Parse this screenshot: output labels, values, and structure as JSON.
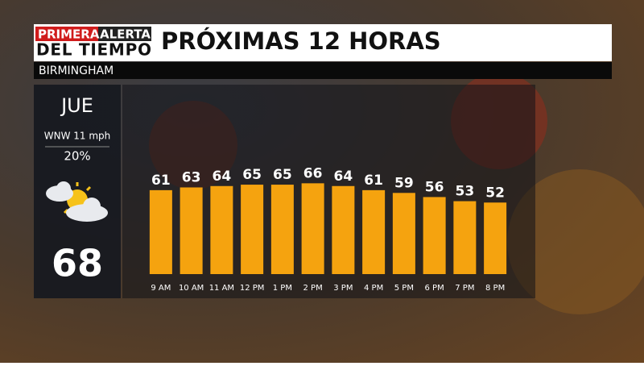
{
  "header": {
    "brand_top_left": "PRIMERA",
    "brand_top_right": "ALERTA",
    "brand_bottom": "DEL TIEMPO",
    "location": "BIRMINGHAM"
  },
  "side_panel": {
    "day": "JUE",
    "wind": "WNW 11 mph",
    "precip": "20%",
    "high": "68"
  },
  "chart_data": {
    "type": "bar",
    "title": "PRÓXIMAS 12 HORAS",
    "categories": [
      "9 AM",
      "10 AM",
      "11 AM",
      "12 PM",
      "1 PM",
      "2 PM",
      "3 PM",
      "4 PM",
      "5 PM",
      "6 PM",
      "7 PM",
      "8 PM"
    ],
    "values": [
      61,
      63,
      64,
      65,
      65,
      66,
      64,
      61,
      59,
      56,
      53,
      52
    ],
    "color": "#f5a30f",
    "ylim": [
      0,
      75
    ]
  }
}
